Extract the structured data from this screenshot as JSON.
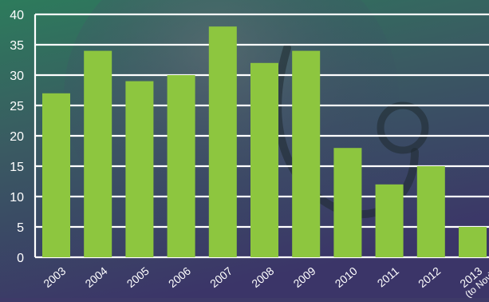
{
  "chart_data": {
    "type": "bar",
    "title": "",
    "xlabel": "",
    "ylabel": "",
    "categories": [
      "2003",
      "2004",
      "2005",
      "2006",
      "2007",
      "2008",
      "2009",
      "2010",
      "2011",
      "2012",
      "2013"
    ],
    "category_sublabels": [
      "",
      "",
      "",
      "",
      "",
      "",
      "",
      "",
      "",
      "",
      "(to Nov)"
    ],
    "values": [
      27,
      34,
      29,
      30,
      38,
      32,
      34,
      18,
      12,
      15,
      5
    ],
    "ylim": [
      0,
      40
    ],
    "yticks": [
      0,
      5,
      10,
      15,
      20,
      25,
      30,
      35,
      40
    ],
    "grid": true,
    "colors": {
      "bar": "#8dc63f",
      "grid": "#ffffff",
      "text": "#ffffff",
      "background_top": "#2f7a5a",
      "background_bottom": "#3a3566"
    }
  }
}
